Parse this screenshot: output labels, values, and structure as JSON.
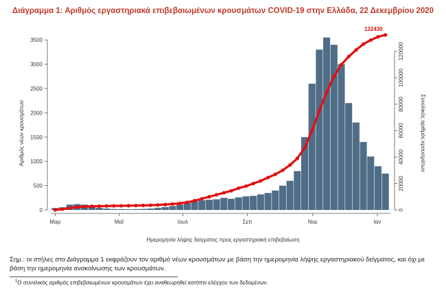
{
  "title": "Διάγραμμα 1: Αριθμός εργαστηριακά επιβεβαιωμένων κρουσμάτων COVID-19 στην Ελλάδα, 22 Δεκεμβρίου 2020",
  "note": "Σημ.: οι στήλες στο Διάγραμμα 1 εκφράζουν τον αριθμό νέων κρουσμάτων με βάση την ημερομηνία λήψης εργαστηριακού δείγματος, και όχι με βάση την ημερομηνία ανακοίνωσης των κρουσμάτων.",
  "footnote_mark": "1",
  "footnote": "Ο συνολικός αριθμός επιβεβαιωμένων κρουσμάτων έχει αναθεωρηθεί κατόπιν ελέγχου των δεδομένων.",
  "colors": {
    "bars": "#4f6d87",
    "line": "#e01010",
    "title": "#c0392b"
  },
  "chart_data": {
    "type": "bar",
    "title": "Διάγραμμα 1: Αριθμός εργαστηριακά επιβεβαιωμένων κρουσμάτων COVID-19 στην Ελλάδα, 22 Δεκεμβρίου 2020",
    "xlabel": "Ημερομηνία λήψης δείγματος προς εργαστηριακή επιβεβαίωση",
    "ylabel": "Αριθμός νέων κρουσμάτων",
    "y2label": "Συνολικός αριθμός κρουσμάτων",
    "ylim": [
      0,
      3700
    ],
    "y2lim": [
      0,
      136000
    ],
    "yticks": [
      0,
      500,
      1000,
      1500,
      2000,
      2500,
      3000,
      3500
    ],
    "y2ticks": [
      0,
      20000,
      40000,
      60000,
      80000,
      100000,
      120000
    ],
    "month_labels": [
      "Μαρ",
      "Μαΐ",
      "Ιουλ",
      "Σεπ",
      "Νοε",
      "Ιαν"
    ],
    "week_index_of_month_labels": [
      0,
      8.7,
      17.4,
      26.2,
      35.1,
      43.9
    ],
    "weekly_peak_new_cases": [
      40,
      55,
      110,
      120,
      110,
      80,
      45,
      30,
      20,
      18,
      16,
      18,
      22,
      30,
      45,
      60,
      80,
      110,
      140,
      180,
      200,
      210,
      220,
      250,
      230,
      260,
      280,
      290,
      320,
      350,
      400,
      500,
      600,
      800,
      1500,
      2600,
      3300,
      3550,
      3400,
      3000,
      2200,
      1800,
      1400,
      1100,
      900,
      750
    ],
    "cumulative_series": {
      "name": "Συνολικός αριθμός κρουσμάτων",
      "values": [
        50,
        600,
        1500,
        2200,
        2600,
        2800,
        2900,
        3000,
        3100,
        3150,
        3250,
        3350,
        3450,
        3600,
        3800,
        4100,
        4500,
        5000,
        5800,
        7000,
        8500,
        10000,
        11500,
        13000,
        14500,
        16500,
        18000,
        20000,
        22000,
        24500,
        27000,
        30000,
        34000,
        39000,
        47000,
        60000,
        75000,
        89000,
        101000,
        110000,
        116000,
        121000,
        125500,
        128500,
        131000,
        132430
      ]
    },
    "annotations": [
      "132430"
    ]
  }
}
